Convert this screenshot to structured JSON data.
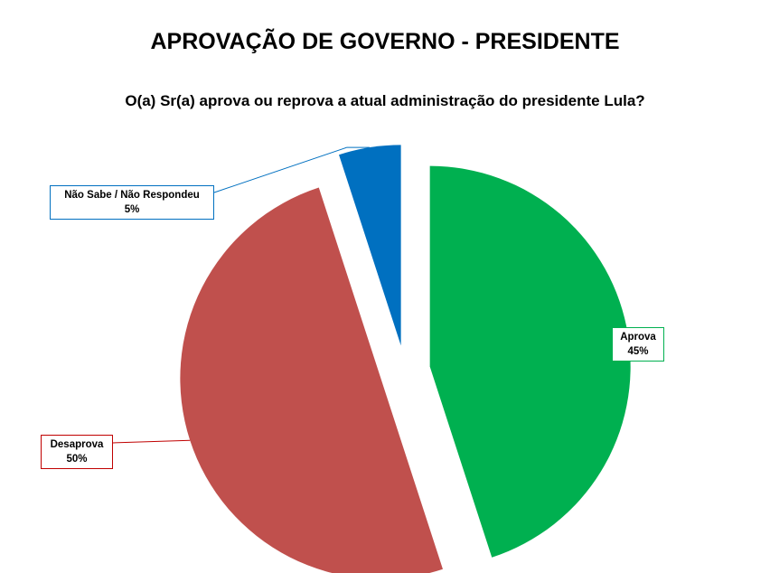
{
  "chart_data": {
    "type": "pie",
    "title": "APROVAÇÃO DE GOVERNO - PRESIDENTE",
    "subtitle": "O(a) Sr(a) aprova ou reprova a atual administração do presidente Lula?",
    "slices": [
      {
        "label": "Aprova",
        "value": 45,
        "value_label": "45%",
        "color": "#00B050"
      },
      {
        "label": "Desaprova",
        "value": 50,
        "value_label": "50%",
        "color": "#C0504D"
      },
      {
        "label": "Não Sabe / Não Respondeu",
        "value": 5,
        "value_label": "5%",
        "color": "#0070C0"
      }
    ],
    "exploded": true,
    "label_style": "callout boxes with leader lines, border in slice color"
  }
}
